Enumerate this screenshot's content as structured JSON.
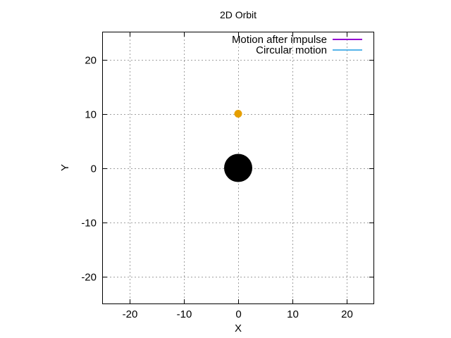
{
  "chart_data": {
    "type": "scatter",
    "title": "2D Orbit",
    "xlabel": "X",
    "ylabel": "Y",
    "xlim": [
      -25,
      25
    ],
    "ylim": [
      -25,
      25
    ],
    "xticks": [
      -20,
      -10,
      0,
      10,
      20
    ],
    "yticks": [
      -20,
      -10,
      0,
      10,
      20
    ],
    "xtick_labels": [
      "-20",
      "-10",
      "0",
      "10",
      "20"
    ],
    "ytick_labels": [
      "-20",
      "-10",
      "0",
      "10",
      "20"
    ],
    "grid": true,
    "legend_position": "top-right",
    "series": [
      {
        "name": "Motion after impulse",
        "color": "#9400d3",
        "values": []
      },
      {
        "name": "Circular motion",
        "color": "#56b4e9",
        "values": []
      }
    ],
    "points": [
      {
        "kind": "central-body",
        "x": 0,
        "y": 0,
        "color": "#000000"
      },
      {
        "kind": "orbiting-body",
        "x": 0,
        "y": 10,
        "color": "#e69f00"
      }
    ]
  }
}
